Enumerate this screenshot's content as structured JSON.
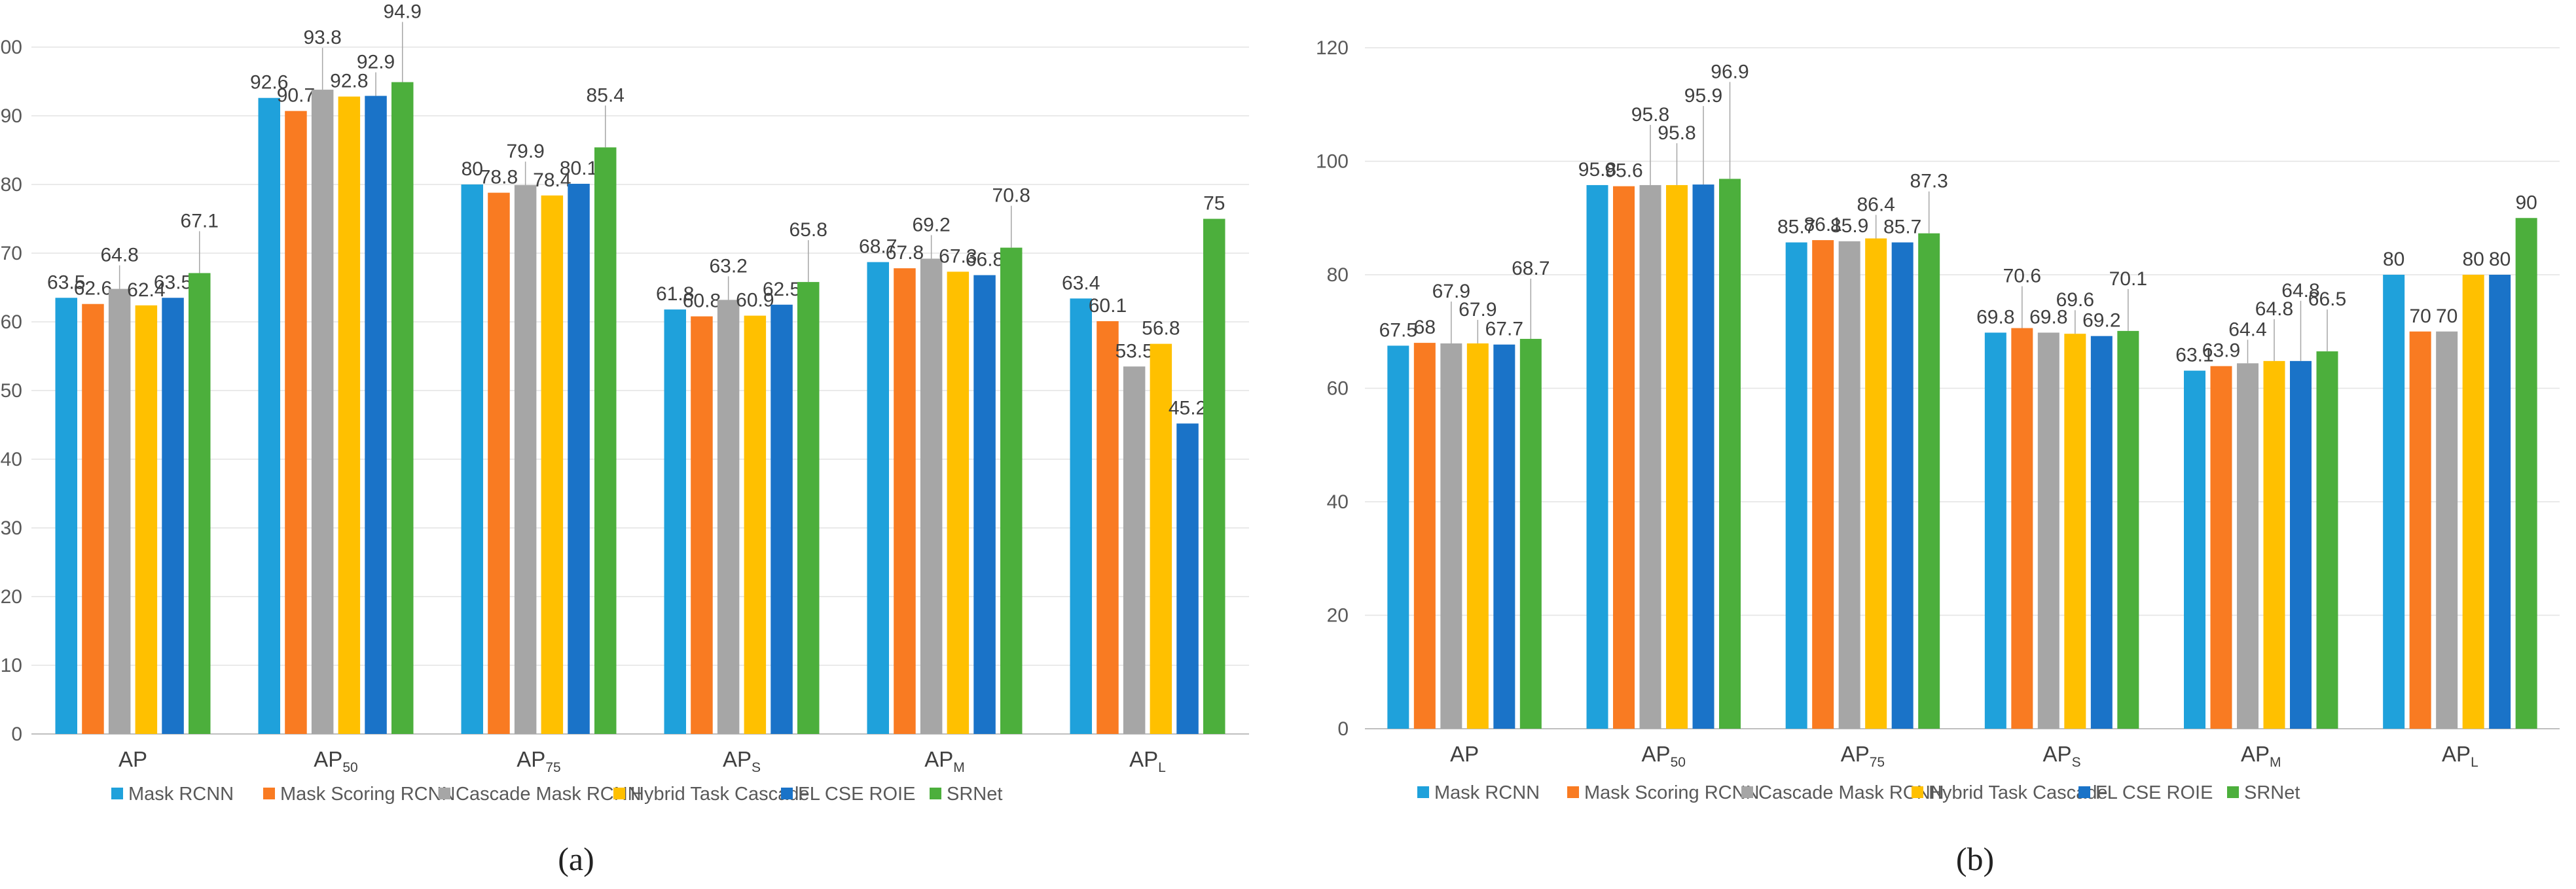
{
  "series_colors": [
    "#1FA1DB",
    "#F97B22",
    "#A6A6A6",
    "#FFC000",
    "#1A73C8",
    "#4CAF3C"
  ],
  "chart_data": [
    {
      "type": "bar",
      "panel_label": "(a)",
      "categories": [
        {
          "base": "AP",
          "sub": ""
        },
        {
          "base": "AP",
          "sub": "50"
        },
        {
          "base": "AP",
          "sub": "75"
        },
        {
          "base": "AP",
          "sub": "S"
        },
        {
          "base": "AP",
          "sub": "M"
        },
        {
          "base": "AP",
          "sub": "L"
        }
      ],
      "yticks": [
        "0",
        "10",
        "20",
        "30",
        "40",
        "50",
        "60",
        "70",
        "80",
        "90",
        "100"
      ],
      "ylim": [
        0,
        100
      ],
      "grid": true,
      "legend_position": "bottom",
      "series": [
        {
          "name": "Mask RCNN",
          "values": [
            63.5,
            92.6,
            80,
            61.8,
            68.7,
            63.4
          ]
        },
        {
          "name": "Mask Scoring RCNN",
          "values": [
            62.6,
            90.7,
            78.8,
            60.8,
            67.8,
            60.1
          ]
        },
        {
          "name": "Cascade Mask RCNN",
          "values": [
            64.8,
            93.8,
            79.9,
            63.2,
            69.2,
            53.5
          ]
        },
        {
          "name": "Hybrid Task Cascade",
          "values": [
            62.4,
            92.8,
            78.4,
            60.9,
            67.3,
            56.8
          ]
        },
        {
          "name": "FL CSE ROIE",
          "values": [
            63.5,
            92.9,
            80.1,
            62.5,
            66.8,
            45.2
          ]
        },
        {
          "name": "SRNet",
          "values": [
            67.1,
            94.9,
            85.4,
            65.8,
            70.8,
            75
          ]
        }
      ]
    },
    {
      "type": "bar",
      "panel_label": "(b)",
      "categories": [
        {
          "base": "AP",
          "sub": ""
        },
        {
          "base": "AP",
          "sub": "50"
        },
        {
          "base": "AP",
          "sub": "75"
        },
        {
          "base": "AP",
          "sub": "S"
        },
        {
          "base": "AP",
          "sub": "M"
        },
        {
          "base": "AP",
          "sub": "L"
        }
      ],
      "yticks": [
        "0",
        "20",
        "40",
        "60",
        "80",
        "100",
        "120"
      ],
      "ylim": [
        0,
        120
      ],
      "grid": true,
      "legend_position": "bottom",
      "series": [
        {
          "name": "Mask RCNN",
          "values": [
            67.5,
            95.8,
            85.7,
            69.8,
            63.1,
            80
          ]
        },
        {
          "name": "Mask Scoring RCNN",
          "values": [
            68,
            95.6,
            86.1,
            70.6,
            63.9,
            70
          ]
        },
        {
          "name": "Cascade Mask RCNN",
          "values": [
            67.9,
            95.8,
            85.9,
            69.8,
            64.4,
            70
          ]
        },
        {
          "name": "Hybrid Task Cascade",
          "values": [
            67.9,
            95.8,
            86.4,
            69.6,
            64.8,
            80
          ]
        },
        {
          "name": "FL CSE ROIE",
          "values": [
            67.7,
            95.9,
            85.7,
            69.2,
            64.8,
            80
          ]
        },
        {
          "name": "SRNet",
          "values": [
            68.7,
            96.9,
            87.3,
            70.1,
            66.5,
            90
          ]
        }
      ]
    }
  ]
}
